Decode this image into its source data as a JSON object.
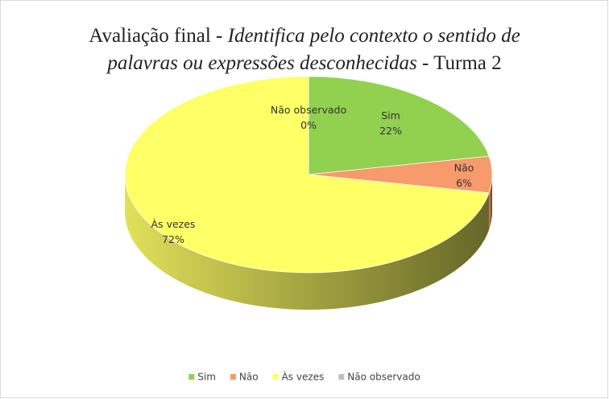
{
  "chart_data": {
    "type": "pie",
    "title": [
      [
        {
          "text": "Avaliação  final - ",
          "italic": false
        },
        {
          "text": "Identifica pelo contexto o sentido de",
          "italic": true
        }
      ],
      [
        {
          "text": "palavras ou expressões  desconhecidas",
          "italic": true
        },
        {
          "text": " - Turma 2",
          "italic": false
        }
      ]
    ],
    "categories": [
      "Sim",
      "Não",
      "Às vezes",
      "Não observado"
    ],
    "values": [
      22,
      6,
      72,
      0
    ],
    "value_labels": [
      "22%",
      "6%",
      "72%",
      "0%"
    ],
    "colors": [
      "#92d050",
      "#f79a6c",
      "#ffff66",
      "#bfbfbf"
    ],
    "legend": "bottom"
  }
}
